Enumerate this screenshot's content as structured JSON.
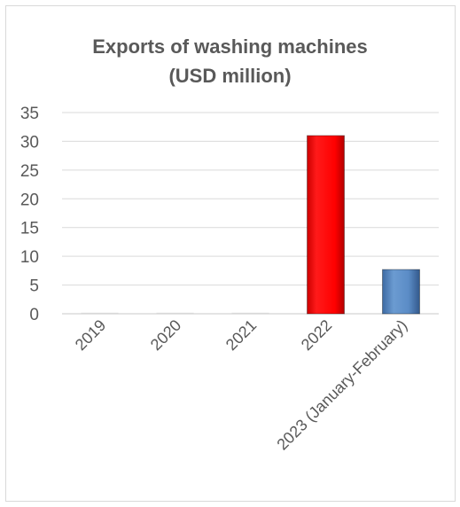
{
  "chart_data": {
    "type": "bar",
    "title_lines": [
      "Exports of washing machines",
      "(USD million)"
    ],
    "categories": [
      "2019",
      "2020",
      "2021",
      "2022",
      "2023 (January-February)"
    ],
    "series": [
      {
        "values": [
          0.1,
          0.05,
          0.05,
          31,
          7.7
        ],
        "colors": [
          "#d9d9d9",
          "#d9d9d9",
          "#d9d9d9",
          "#ff0000",
          "#4f81bd"
        ]
      }
    ],
    "y_ticks": [
      0,
      5,
      10,
      15,
      20,
      25,
      30,
      35
    ],
    "ylim": [
      0,
      35
    ],
    "grid": true,
    "xlabel": "",
    "ylabel": ""
  }
}
